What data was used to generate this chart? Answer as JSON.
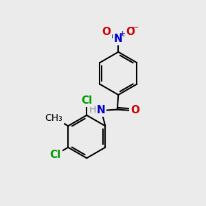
{
  "bg_color": "#ebebeb",
  "bond_color": "#000000",
  "line_width": 1.5,
  "atom_colors": {
    "N": "#0000cc",
    "O": "#cc0000",
    "Cl": "#009900",
    "H": "#888888",
    "C": "#000000"
  },
  "font_size": 11,
  "font_size_small": 9
}
